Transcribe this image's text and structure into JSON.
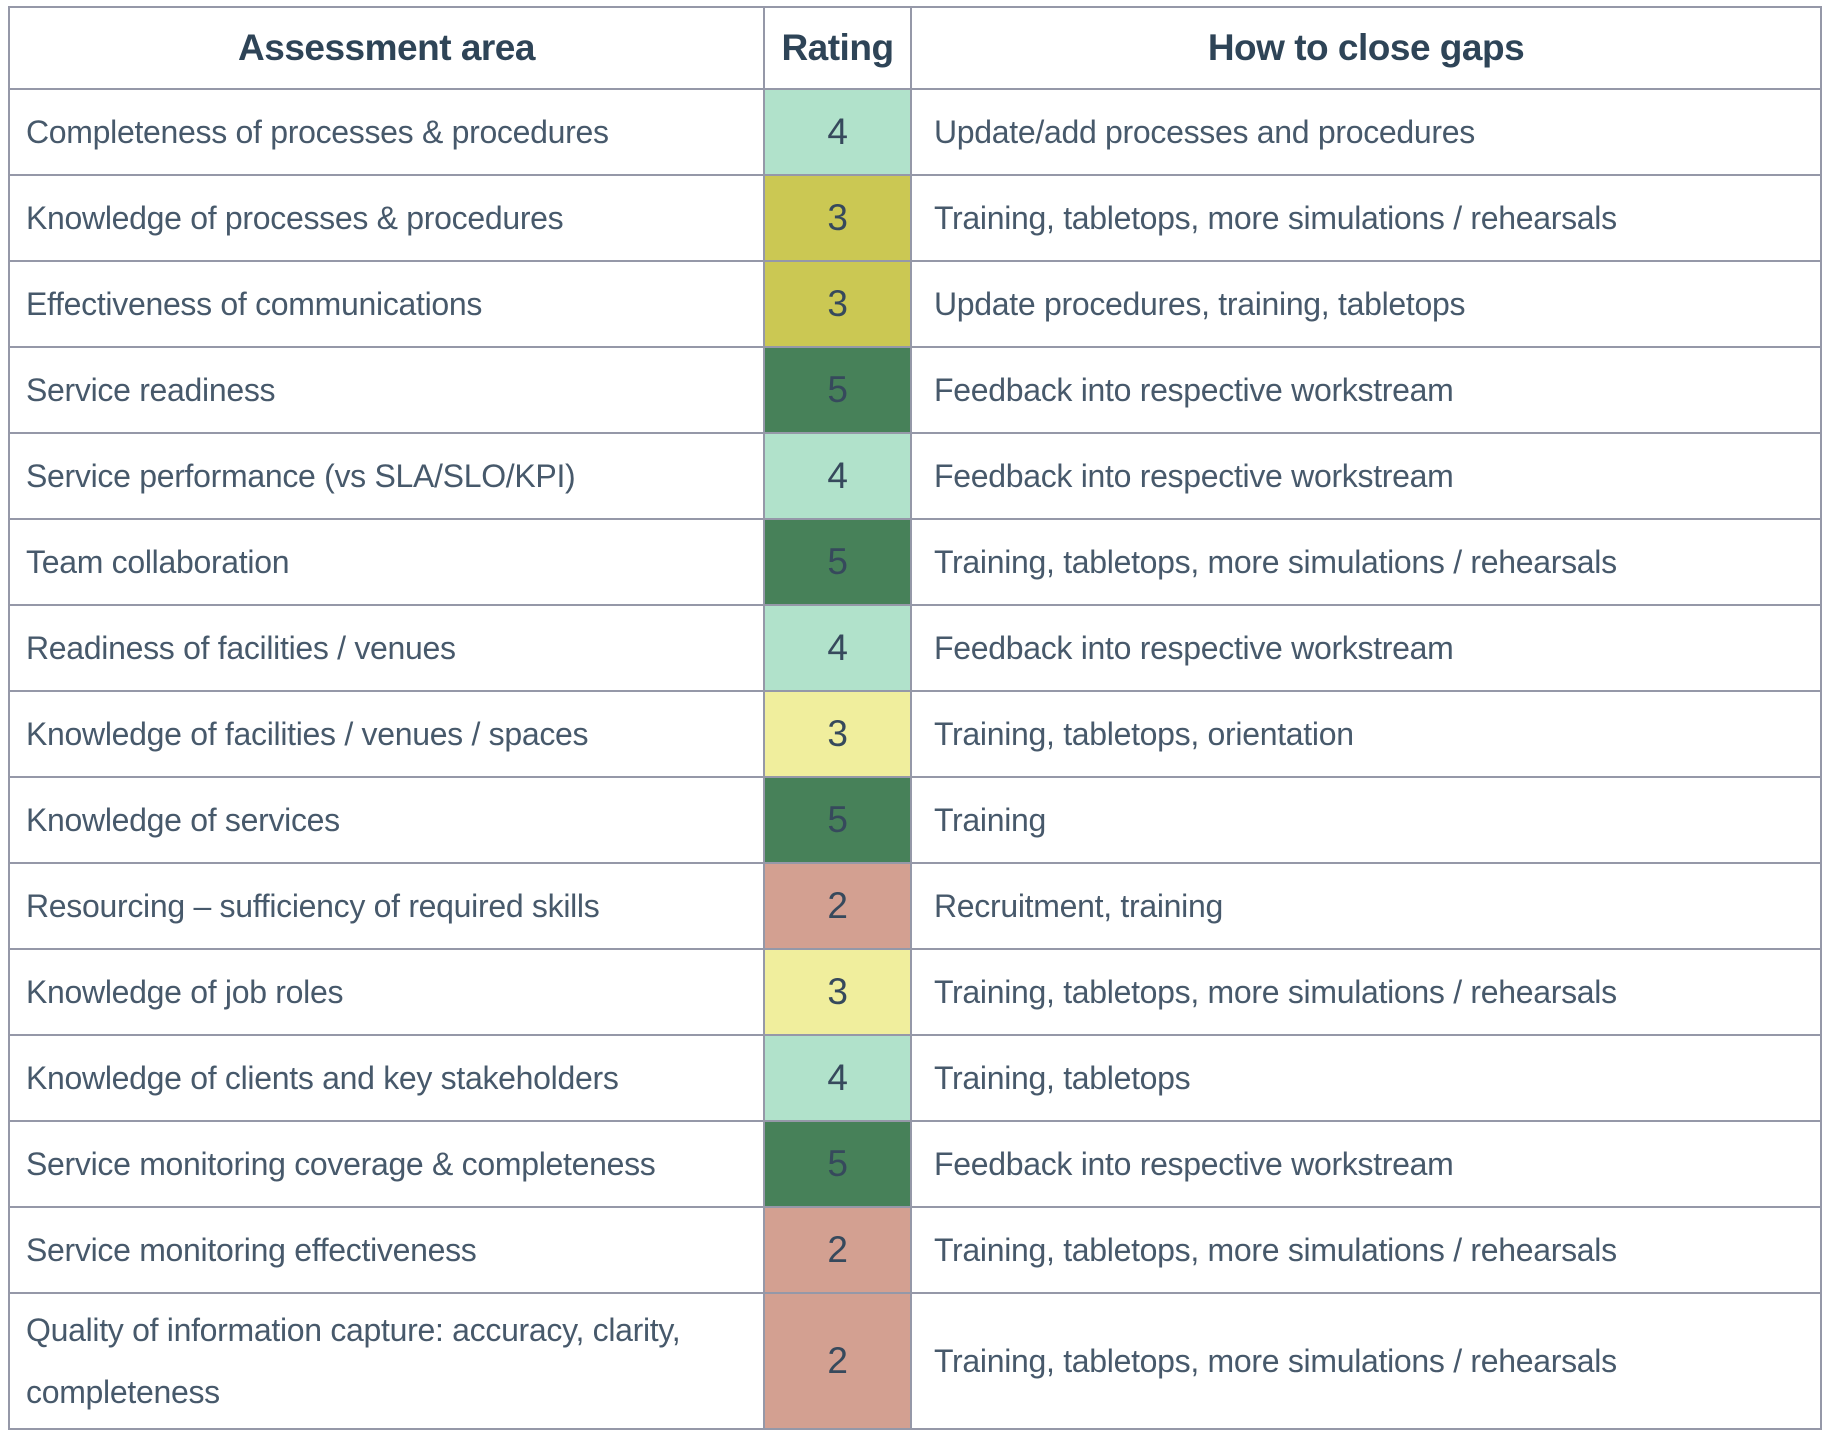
{
  "colors": {
    "mint": "#b1e2cb",
    "olive": "#cbc853",
    "yellow": "#f0ee9d",
    "green": "#478159",
    "salmon": "#d3a091",
    "border": "#9598a8",
    "header_text": "#2e4457",
    "body_text": "#47596b",
    "rating_text": "#36495c"
  },
  "table": {
    "columns": [
      "Assessment area",
      "Rating",
      "How to close gaps"
    ],
    "rows": [
      {
        "area": "Completeness of processes & procedures",
        "rating": "4",
        "color": "mint",
        "gap": "Update/add processes and procedures"
      },
      {
        "area": "Knowledge of processes & procedures",
        "rating": "3",
        "color": "olive",
        "gap": "Training, tabletops, more simulations / rehearsals"
      },
      {
        "area": "Effectiveness of communications",
        "rating": "3",
        "color": "olive",
        "gap": "Update procedures, training, tabletops"
      },
      {
        "area": "Service readiness",
        "rating": "5",
        "color": "green",
        "gap": "Feedback into respective workstream"
      },
      {
        "area": "Service performance (vs SLA/SLO/KPI)",
        "rating": "4",
        "color": "mint",
        "gap": "Feedback into respective workstream"
      },
      {
        "area": "Team collaboration",
        "rating": "5",
        "color": "green",
        "gap": "Training, tabletops, more simulations / rehearsals"
      },
      {
        "area": "Readiness of facilities / venues",
        "rating": "4",
        "color": "mint",
        "gap": "Feedback into respective workstream"
      },
      {
        "area": "Knowledge of facilities / venues / spaces",
        "rating": "3",
        "color": "yellow",
        "gap": "Training, tabletops, orientation"
      },
      {
        "area": "Knowledge of services",
        "rating": "5",
        "color": "green",
        "gap": "Training"
      },
      {
        "area": "Resourcing – sufficiency of required skills",
        "rating": "2",
        "color": "salmon",
        "gap": "Recruitment, training"
      },
      {
        "area": "Knowledge of job roles",
        "rating": "3",
        "color": "yellow",
        "gap": "Training, tabletops, more simulations / rehearsals"
      },
      {
        "area": "Knowledge of clients and key stakeholders",
        "rating": "4",
        "color": "mint",
        "gap": "Training, tabletops"
      },
      {
        "area": "Service monitoring coverage & completeness",
        "rating": "5",
        "color": "green",
        "gap": "Feedback into respective workstream"
      },
      {
        "area": "Service monitoring effectiveness",
        "rating": "2",
        "color": "salmon",
        "gap": "Training, tabletops, more simulations / rehearsals"
      },
      {
        "area": "Quality of information capture: accuracy, clarity,\ncompleteness",
        "rating": "2",
        "color": "salmon",
        "gap": "Training, tabletops, more simulations / rehearsals"
      }
    ]
  }
}
